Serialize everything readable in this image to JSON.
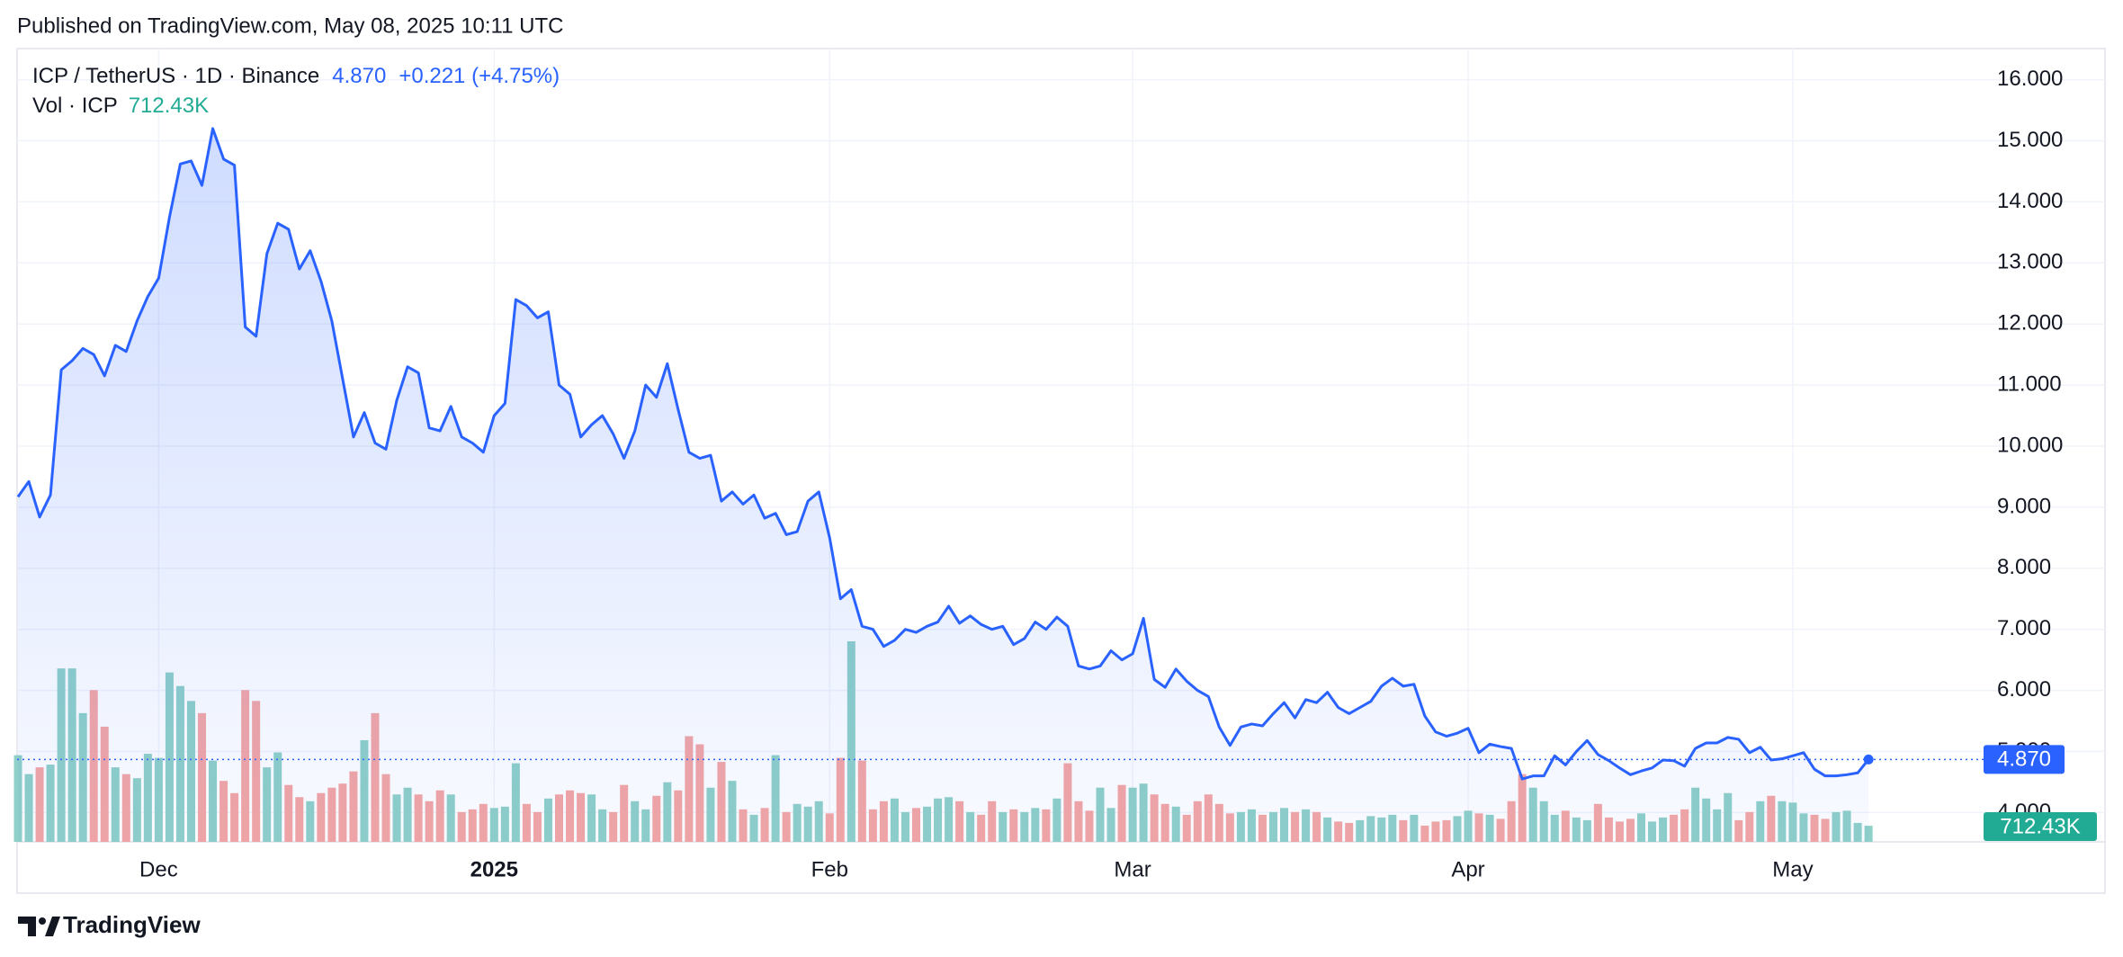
{
  "header": {
    "title": "Published on TradingView.com, May 08, 2025 10:11 UTC"
  },
  "footer": {
    "brand": "TradingView"
  },
  "chart_data": {
    "type": "line",
    "change": "+0.221 (+4.75%)",
    "last_price_label": "4.870",
    "categories": [
      null,
      null,
      null,
      null,
      null,
      null,
      null,
      null,
      null,
      null,
      null,
      null,
      null,
      "Dec",
      null,
      null,
      null,
      null,
      null,
      null,
      null,
      null,
      null,
      null,
      null,
      null,
      null,
      null,
      null,
      null,
      null,
      null,
      null,
      null,
      null,
      null,
      null,
      null,
      null,
      null,
      null,
      null,
      null,
      null,
      "2025",
      null,
      null,
      null,
      null,
      null,
      null,
      null,
      null,
      null,
      null,
      null,
      null,
      null,
      null,
      null,
      null,
      null,
      null,
      null,
      null,
      null,
      null,
      null,
      null,
      null,
      null,
      null,
      null,
      null,
      null,
      "Feb",
      null,
      null,
      null,
      null,
      null,
      null,
      null,
      null,
      null,
      null,
      null,
      null,
      null,
      null,
      null,
      null,
      null,
      null,
      null,
      null,
      null,
      null,
      null,
      null,
      null,
      null,
      null,
      "Mar",
      null,
      null,
      null,
      null,
      null,
      null,
      null,
      null,
      null,
      null,
      null,
      null,
      null,
      null,
      null,
      null,
      null,
      null,
      null,
      null,
      null,
      null,
      null,
      null,
      null,
      null,
      null,
      null,
      null,
      null,
      "Apr",
      null,
      null,
      null,
      null,
      null,
      null,
      null,
      null,
      null,
      null,
      null,
      null,
      null,
      null,
      null,
      null,
      null,
      null,
      null,
      null,
      null,
      null,
      null,
      null,
      null,
      null,
      null,
      null,
      null,
      "May",
      null,
      null,
      null,
      null,
      null,
      null,
      null
    ],
    "ylim": [
      3.52,
      16.51
    ],
    "yticks": [
      {
        "value": 4,
        "label": "4.000"
      },
      {
        "value": 5,
        "label": "5.000"
      },
      {
        "value": 6,
        "label": "6.000"
      },
      {
        "value": 7,
        "label": "7.000"
      },
      {
        "value": 8,
        "label": "8.000"
      },
      {
        "value": 9,
        "label": "9.000"
      },
      {
        "value": 10,
        "label": "10.000"
      },
      {
        "value": 11,
        "label": "11.000"
      },
      {
        "value": 12,
        "label": "12.000"
      },
      {
        "value": 13,
        "label": "13.000"
      },
      {
        "value": 14,
        "label": "14.000"
      },
      {
        "value": 15,
        "label": "15.000"
      },
      {
        "value": 16,
        "label": "16.000"
      }
    ],
    "grid": true,
    "series": [
      {
        "name": "ICP / TetherUS · 1D · Binance",
        "color": "#2962ff",
        "values": [
          9.17,
          9.42,
          8.84,
          9.2,
          11.25,
          11.4,
          11.6,
          11.5,
          11.15,
          11.65,
          11.55,
          12.05,
          12.45,
          12.75,
          13.75,
          14.62,
          14.67,
          14.27,
          15.2,
          14.7,
          14.6,
          11.95,
          11.8,
          13.15,
          13.65,
          13.55,
          12.9,
          13.2,
          12.7,
          12.05,
          11.1,
          10.15,
          10.55,
          10.05,
          9.95,
          10.75,
          11.3,
          11.2,
          10.3,
          10.25,
          10.65,
          10.15,
          10.05,
          9.9,
          10.5,
          10.7,
          12.4,
          12.3,
          12.1,
          12.2,
          11.0,
          10.85,
          10.15,
          10.35,
          10.5,
          10.2,
          9.8,
          10.25,
          11.0,
          10.8,
          11.35,
          10.6,
          9.9,
          9.8,
          9.85,
          9.1,
          9.25,
          9.05,
          9.2,
          8.82,
          8.9,
          8.55,
          8.6,
          9.1,
          9.25,
          8.5,
          7.5,
          7.65,
          7.05,
          7.0,
          6.72,
          6.82,
          7.0,
          6.95,
          7.05,
          7.12,
          7.38,
          7.1,
          7.22,
          7.08,
          7.0,
          7.05,
          6.75,
          6.85,
          7.12,
          7.0,
          7.2,
          7.05,
          6.4,
          6.35,
          6.4,
          6.65,
          6.5,
          6.6,
          7.18,
          6.18,
          6.05,
          6.35,
          6.15,
          6.0,
          5.9,
          5.4,
          5.1,
          5.4,
          5.45,
          5.42,
          5.62,
          5.8,
          5.55,
          5.85,
          5.8,
          5.97,
          5.72,
          5.62,
          5.72,
          5.82,
          6.07,
          6.2,
          6.07,
          6.1,
          5.58,
          5.32,
          5.25,
          5.3,
          5.38,
          4.98,
          5.12,
          5.08,
          5.05,
          4.55,
          4.6,
          4.6,
          4.93,
          4.78,
          5.0,
          5.18,
          4.95,
          4.85,
          4.73,
          4.62,
          4.68,
          4.73,
          4.86,
          4.85,
          4.76,
          5.05,
          5.14,
          5.14,
          5.23,
          5.2,
          4.98,
          5.07,
          4.86,
          4.88,
          4.93,
          4.98,
          4.71,
          4.6,
          4.6,
          4.62,
          4.65,
          4.87
        ]
      },
      {
        "name": "Vol · ICP",
        "type": "bar",
        "up_color": "#8fd0c8",
        "down_color": "#f4a6a4",
        "label_color": "#22ab94",
        "last_label": "712.43K",
        "values": [
          3840,
          3000,
          3300,
          3420,
          7680,
          7680,
          5700,
          6720,
          5100,
          3300,
          3000,
          2820,
          3900,
          3720,
          7500,
          6900,
          6240,
          5700,
          3600,
          2700,
          2160,
          6720,
          6240,
          3300,
          3960,
          2520,
          1980,
          1800,
          2160,
          2400,
          2580,
          3120,
          4500,
          5700,
          3000,
          2100,
          2400,
          2100,
          1800,
          2280,
          2100,
          1320,
          1440,
          1680,
          1500,
          1560,
          3480,
          1680,
          1320,
          1920,
          2100,
          2280,
          2160,
          2100,
          1440,
          1320,
          2520,
          1800,
          1440,
          2040,
          2640,
          2280,
          4680,
          4320,
          2400,
          3540,
          2700,
          1440,
          1200,
          1500,
          3840,
          1320,
          1680,
          1560,
          1800,
          1260,
          3720,
          8880,
          3600,
          1440,
          1800,
          1920,
          1320,
          1500,
          1560,
          1920,
          1980,
          1800,
          1320,
          1200,
          1800,
          1320,
          1440,
          1320,
          1500,
          1440,
          1920,
          3480,
          1800,
          1380,
          2400,
          1500,
          2520,
          2400,
          2580,
          2100,
          1680,
          1560,
          1200,
          1800,
          2100,
          1680,
          1260,
          1320,
          1440,
          1200,
          1320,
          1500,
          1320,
          1440,
          1320,
          1080,
          900,
          840,
          960,
          1140,
          1080,
          1200,
          960,
          1200,
          720,
          900,
          960,
          1140,
          1380,
          1260,
          1200,
          1020,
          1800,
          3000,
          2400,
          1800,
          1200,
          1380,
          1080,
          960,
          1680,
          1080,
          900,
          1020,
          1260,
          900,
          1080,
          1200,
          1440,
          2400,
          1920,
          1440,
          2160,
          960,
          1320,
          1800,
          2040,
          1800,
          1740,
          1260,
          1200,
          1020,
          1320,
          1380,
          840,
          712.43
        ]
      }
    ]
  }
}
